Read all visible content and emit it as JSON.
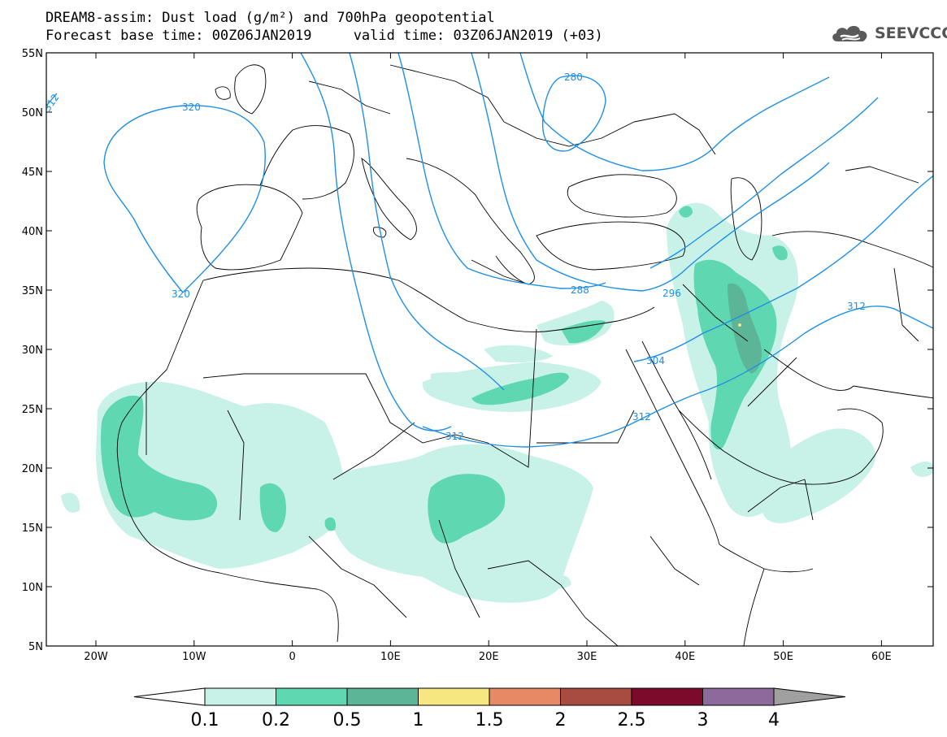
{
  "title": {
    "line1": "DREAM8-assim: Dust load (g/m²) and 700hPa geopotential",
    "line2": "Forecast base time: 00Z06JAN2019     valid time: 03Z06JAN2019 (+03)"
  },
  "logo": {
    "text": "SEEVCCC",
    "icon": "cloud-logo-icon"
  },
  "map": {
    "lat_labels": [
      "55N",
      "50N",
      "45N",
      "40N",
      "35N",
      "30N",
      "25N",
      "20N",
      "15N",
      "10N",
      "5N"
    ],
    "lon_labels": [
      "20W",
      "10W",
      "0",
      "10E",
      "20E",
      "30E",
      "40E",
      "50E",
      "60E"
    ],
    "contour_labels": [
      "312",
      "320",
      "320",
      "280",
      "288",
      "296",
      "304",
      "312",
      "312",
      "312"
    ],
    "contour_color": "#1f8fe6"
  },
  "colorbar": {
    "labels": [
      "0.1",
      "0.2",
      "0.5",
      "1",
      "1.5",
      "2",
      "2.5",
      "3",
      "4"
    ],
    "colors": [
      "#c8f1e8",
      "#5fd8b2",
      "#5cb597",
      "#f7e781",
      "#e68a66",
      "#a84b41",
      "#7b0a2b",
      "#8c6a9c"
    ],
    "under_color": "#ffffff",
    "over_color": "#a0a0a0"
  }
}
